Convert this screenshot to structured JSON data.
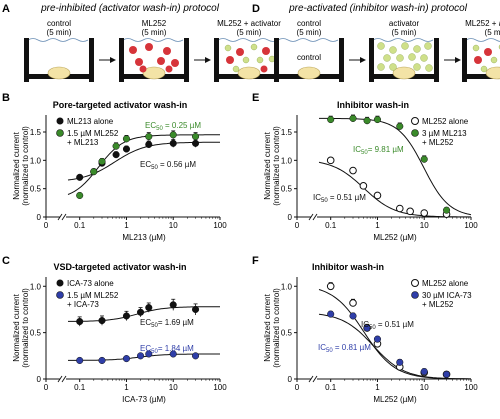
{
  "panels": {
    "A": {
      "letter": "A",
      "title": "pre-inhibited (activator wash-in) protocol",
      "steps": [
        {
          "name": "control",
          "duration": "(5 min)"
        },
        {
          "name": "ML252",
          "duration": "(5 min)"
        },
        {
          "name": "ML252 + activator",
          "duration": "(5 min)"
        }
      ]
    },
    "D": {
      "letter": "D",
      "title": "pre-activated (inhibitor wash-in) protocol",
      "steps": [
        {
          "name": "control",
          "duration": "(5 min)"
        },
        {
          "name": "activator",
          "duration": "(5 min)"
        },
        {
          "name": "ML252 + activator",
          "duration": "(5 min)"
        }
      ],
      "cell_label": "control"
    }
  },
  "chart_data": [
    {
      "panel": "B",
      "type": "scatter",
      "title": "Pore-targeted activator wash-in",
      "xlabel": "ML213 (µM)",
      "ylabel": "Normalized current (normalized to control)",
      "xscale": "log",
      "xlim": [
        0.03,
        100
      ],
      "ylim": [
        0,
        1.8
      ],
      "xticks": [
        0,
        0.1,
        1,
        10,
        100
      ],
      "xticklabels": [
        "0",
        "0.1",
        "1",
        "10",
        "100"
      ],
      "yticks": [
        0,
        0.5,
        1.0,
        1.5
      ],
      "yticklabels": [
        "0",
        "0.5",
        "1.0",
        "1.5"
      ],
      "axis_break": true,
      "legend": [
        "ML213 alone",
        "1.5 µM ML252",
        "+ ML213"
      ],
      "annotations": [
        {
          "text": "EC",
          "sub": "50",
          "value": " = 0.25 µM",
          "color": "#3a8a2a"
        },
        {
          "text": "EC",
          "sub": "50",
          "value": " = 0.56 µM",
          "color": "#111111"
        }
      ],
      "series": [
        {
          "name": "ML213 alone",
          "color": "#111111",
          "x": [
            0.1,
            0.2,
            0.3,
            0.6,
            1,
            3,
            10,
            30
          ],
          "y": [
            0.7,
            0.8,
            0.95,
            1.1,
            1.2,
            1.28,
            1.3,
            1.3
          ],
          "err": [
            0.04,
            0.04,
            0.05,
            0.05,
            0.05,
            0.06,
            0.07,
            0.07
          ],
          "fit": {
            "bottom": 0.62,
            "top": 1.32,
            "ec50": 0.56,
            "hill": 1.3
          }
        },
        {
          "name": "1.5 µM ML252 + ML213",
          "color": "#3a8a2a",
          "x": [
            0.1,
            0.2,
            0.3,
            0.6,
            1,
            3,
            10,
            30
          ],
          "y": [
            0.38,
            0.8,
            0.98,
            1.25,
            1.38,
            1.42,
            1.45,
            1.42
          ],
          "err": [
            0.04,
            0.05,
            0.05,
            0.06,
            0.06,
            0.07,
            0.07,
            0.07
          ],
          "fit": {
            "bottom": 0.3,
            "top": 1.45,
            "ec50": 0.25,
            "hill": 1.6
          }
        }
      ]
    },
    {
      "panel": "C",
      "type": "scatter",
      "title": "VSD-targeted activator wash-in",
      "xlabel": "ICA-73 (µM)",
      "ylabel": "Normalized current (normalized to control)",
      "xscale": "log",
      "xlim": [
        0.03,
        100
      ],
      "ylim": [
        0,
        1.1
      ],
      "xticks": [
        0,
        0.1,
        1,
        10,
        100
      ],
      "xticklabels": [
        "0",
        "0.1",
        "1",
        "10",
        "100"
      ],
      "yticks": [
        0,
        0.5,
        1.0
      ],
      "yticklabels": [
        "0",
        "0.5",
        "1.0"
      ],
      "axis_break": true,
      "legend": [
        "ICA-73 alone",
        "1.5 µM ML252",
        "+ ICA-73"
      ],
      "annotations": [
        {
          "text": "EC",
          "sub": "50",
          "value": "= 1.69 µM",
          "color": "#111111"
        },
        {
          "text": "EC",
          "sub": "50",
          "value": "= 1.84 µM",
          "color": "#2f3ea8"
        }
      ],
      "series": [
        {
          "name": "ICA-73 alone",
          "color": "#111111",
          "x": [
            0.1,
            0.3,
            1,
            2,
            3,
            10,
            30
          ],
          "y": [
            0.62,
            0.63,
            0.68,
            0.72,
            0.77,
            0.8,
            0.75
          ],
          "err": [
            0.05,
            0.05,
            0.05,
            0.05,
            0.05,
            0.06,
            0.06
          ],
          "fit": {
            "bottom": 0.62,
            "top": 0.78,
            "ec50": 1.69,
            "hill": 1.5
          }
        },
        {
          "name": "1.5 µM ML252 + ICA-73",
          "color": "#2f3ea8",
          "x": [
            0.1,
            0.3,
            1,
            2,
            3,
            10,
            30
          ],
          "y": [
            0.2,
            0.2,
            0.22,
            0.25,
            0.27,
            0.27,
            0.25
          ],
          "err": [
            0.02,
            0.02,
            0.02,
            0.02,
            0.02,
            0.02,
            0.02
          ],
          "fit": {
            "bottom": 0.2,
            "top": 0.27,
            "ec50": 1.84,
            "hill": 1.5
          }
        }
      ]
    },
    {
      "panel": "E",
      "type": "scatter",
      "title": "Inhibitor wash-in",
      "xlabel": "ML252 (µM)",
      "ylabel": "Normalized current (normalized to control)",
      "xscale": "log",
      "xlim": [
        0.03,
        100
      ],
      "ylim": [
        0,
        1.8
      ],
      "xticks": [
        0,
        0.1,
        1,
        10,
        100
      ],
      "xticklabels": [
        "0",
        "0.1",
        "1",
        "10",
        "100"
      ],
      "yticks": [
        0,
        0.5,
        1.0,
        1.5
      ],
      "yticklabels": [
        "0",
        "0.5",
        "1.0",
        "1.5"
      ],
      "axis_break": true,
      "legend": [
        "ML252 alone",
        "3 µM ML213",
        "+ ML252"
      ],
      "annotations": [
        {
          "text": "IC",
          "sub": "50",
          "value": "= 9.81 µM",
          "color": "#3a8a2a"
        },
        {
          "text": "IC",
          "sub": "50",
          "value": " = 0.51 µM",
          "color": "#111111"
        }
      ],
      "series": [
        {
          "name": "ML252 alone",
          "color": "#111111",
          "hollow": true,
          "x": [
            0.1,
            0.3,
            0.5,
            1,
            3,
            5,
            10,
            30
          ],
          "y": [
            1.0,
            0.82,
            0.55,
            0.38,
            0.15,
            0.1,
            0.07,
            0.05
          ],
          "err": [
            0.04,
            0.04,
            0.04,
            0.04,
            0.03,
            0.03,
            0.03,
            0.03
          ],
          "fit": {
            "bottom": 0.0,
            "top": 1.02,
            "ec50": 0.51,
            "hill": -1.3
          }
        },
        {
          "name": "3 µM ML213 + ML252",
          "color": "#3a8a2a",
          "x": [
            0.1,
            0.3,
            0.6,
            1,
            3,
            10,
            30
          ],
          "y": [
            1.72,
            1.74,
            1.7,
            1.72,
            1.6,
            1.02,
            0.12
          ],
          "err": [
            0.06,
            0.06,
            0.06,
            0.06,
            0.06,
            0.06,
            0.05
          ],
          "fit": {
            "bottom": 0.0,
            "top": 1.74,
            "ec50": 9.81,
            "hill": -1.6
          }
        }
      ]
    },
    {
      "panel": "F",
      "type": "scatter",
      "title": "Inhibitor wash-in",
      "xlabel": "ML252 (µM)",
      "ylabel": "Normalized current (normalized to control)",
      "xscale": "log",
      "xlim": [
        0.03,
        100
      ],
      "ylim": [
        0,
        1.1
      ],
      "xticks": [
        0,
        0.1,
        1,
        10,
        100
      ],
      "xticklabels": [
        "0",
        "0.1",
        "1",
        "10",
        "100"
      ],
      "yticks": [
        0,
        0.5,
        1.0
      ],
      "yticklabels": [
        "0",
        "0.5",
        "1.0"
      ],
      "axis_break": true,
      "legend": [
        "ML252 alone",
        "30 µM ICA-73",
        "+ ML252"
      ],
      "annotations": [
        {
          "text": "IC",
          "sub": "50",
          "value": " = 0.51 µM",
          "color": "#111111"
        },
        {
          "text": "IC",
          "sub": "50",
          "value": " = 0.81 µM",
          "color": "#2f3ea8"
        }
      ],
      "series": [
        {
          "name": "ML252 alone",
          "color": "#111111",
          "hollow": true,
          "x": [
            0.1,
            0.3,
            0.6,
            1,
            3,
            10,
            30
          ],
          "y": [
            1.0,
            0.82,
            0.55,
            0.38,
            0.13,
            0.07,
            0.05
          ],
          "err": [
            0.04,
            0.04,
            0.04,
            0.04,
            0.03,
            0.03,
            0.03
          ],
          "fit": {
            "bottom": 0.0,
            "top": 1.02,
            "ec50": 0.51,
            "hill": -1.3
          }
        },
        {
          "name": "30 µM ICA-73 + ML252",
          "color": "#2f3ea8",
          "x": [
            0.1,
            0.3,
            0.6,
            1,
            3,
            10,
            30
          ],
          "y": [
            0.7,
            0.68,
            0.55,
            0.43,
            0.18,
            0.08,
            0.05
          ],
          "err": [
            0.03,
            0.03,
            0.03,
            0.03,
            0.03,
            0.03,
            0.03
          ],
          "fit": {
            "bottom": 0.0,
            "top": 0.72,
            "ec50": 0.81,
            "hill": -1.3
          }
        }
      ]
    }
  ]
}
